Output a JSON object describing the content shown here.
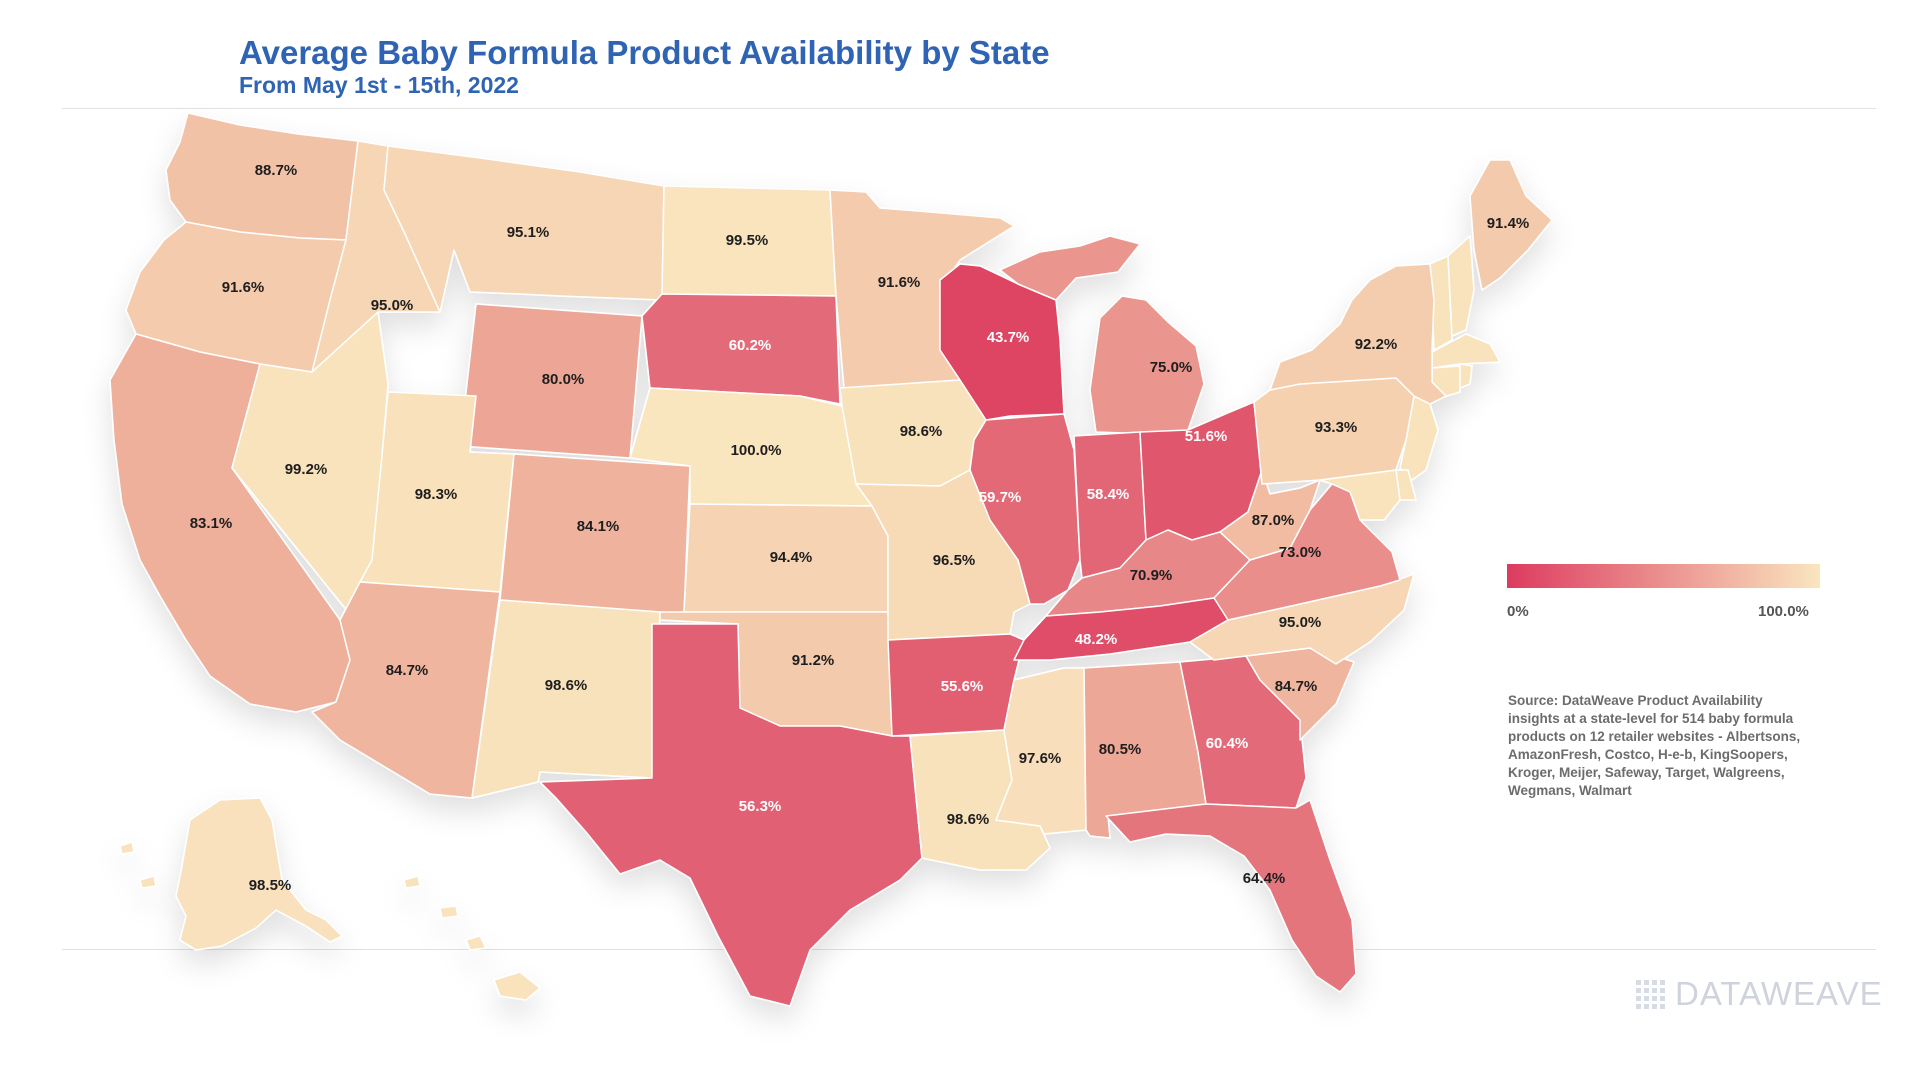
{
  "title": "Average Baby Formula Product Availability by State",
  "subtitle": "From May 1st - 15th, 2022",
  "legend": {
    "min_label": "0%",
    "max_label": "100.0%",
    "color_low": "#dd3b5f",
    "color_high": "#f9e6bf"
  },
  "source_note": "Source: DataWeave Product Availability insights at a state-level for 514 baby formula products on 12 retailer websites - Albertsons, AmazonFresh, Costco, H-e-b, KingSoopers, Kroger, Meijer, Safeway, Target, Walgreens, Wegmans, Walmart",
  "brand": "DATAWEAVE",
  "states": [
    {
      "code": "WA",
      "label": "88.7%",
      "value": 88.7
    },
    {
      "code": "OR",
      "label": "91.6%",
      "value": 91.6
    },
    {
      "code": "CA",
      "label": "83.1%",
      "value": 83.1
    },
    {
      "code": "ID",
      "label": "95.0%",
      "value": 95.0
    },
    {
      "code": "NV",
      "label": "99.2%",
      "value": 99.2
    },
    {
      "code": "MT",
      "label": "95.1%",
      "value": 95.1
    },
    {
      "code": "WY",
      "label": "80.0%",
      "value": 80.0
    },
    {
      "code": "UT",
      "label": "98.3%",
      "value": 98.3
    },
    {
      "code": "AZ",
      "label": "84.7%",
      "value": 84.7
    },
    {
      "code": "CO",
      "label": "84.1%",
      "value": 84.1
    },
    {
      "code": "NM",
      "label": "98.6%",
      "value": 98.6
    },
    {
      "code": "ND",
      "label": "99.5%",
      "value": 99.5
    },
    {
      "code": "SD",
      "label": "60.2%",
      "value": 60.2
    },
    {
      "code": "NE",
      "label": "100.0%",
      "value": 100.0
    },
    {
      "code": "KS",
      "label": "94.4%",
      "value": 94.4
    },
    {
      "code": "OK",
      "label": "91.2%",
      "value": 91.2
    },
    {
      "code": "TX",
      "label": "56.3%",
      "value": 56.3
    },
    {
      "code": "MN",
      "label": "91.6%",
      "value": 91.6
    },
    {
      "code": "IA",
      "label": "98.6%",
      "value": 98.6
    },
    {
      "code": "MO",
      "label": "96.5%",
      "value": 96.5
    },
    {
      "code": "AR",
      "label": "55.6%",
      "value": 55.6
    },
    {
      "code": "LA",
      "label": "98.6%",
      "value": 98.6
    },
    {
      "code": "WI",
      "label": "43.7%",
      "value": 43.7
    },
    {
      "code": "IL",
      "label": "59.7%",
      "value": 59.7
    },
    {
      "code": "MI",
      "label": "75.0%",
      "value": 75.0
    },
    {
      "code": "IN",
      "label": "58.4%",
      "value": 58.4
    },
    {
      "code": "OH",
      "label": "51.6%",
      "value": 51.6
    },
    {
      "code": "KY",
      "label": "70.9%",
      "value": 70.9
    },
    {
      "code": "TN",
      "label": "48.2%",
      "value": 48.2
    },
    {
      "code": "MS",
      "label": "97.6%",
      "value": 97.6
    },
    {
      "code": "AL",
      "label": "80.5%",
      "value": 80.5
    },
    {
      "code": "GA",
      "label": "60.4%",
      "value": 60.4
    },
    {
      "code": "FL",
      "label": "64.4%",
      "value": 64.4
    },
    {
      "code": "SC",
      "label": "84.7%",
      "value": 84.7
    },
    {
      "code": "NC",
      "label": "95.0%",
      "value": 95.0
    },
    {
      "code": "VA",
      "label": "73.0%",
      "value": 73.0
    },
    {
      "code": "WV",
      "label": "87.0%",
      "value": 87.0
    },
    {
      "code": "PA",
      "label": "93.3%",
      "value": 93.3
    },
    {
      "code": "NY",
      "label": "92.2%",
      "value": 92.2
    },
    {
      "code": "ME",
      "label": "91.4%",
      "value": 91.4
    },
    {
      "code": "AK",
      "label": "98.5%",
      "value": 98.5
    }
  ]
}
